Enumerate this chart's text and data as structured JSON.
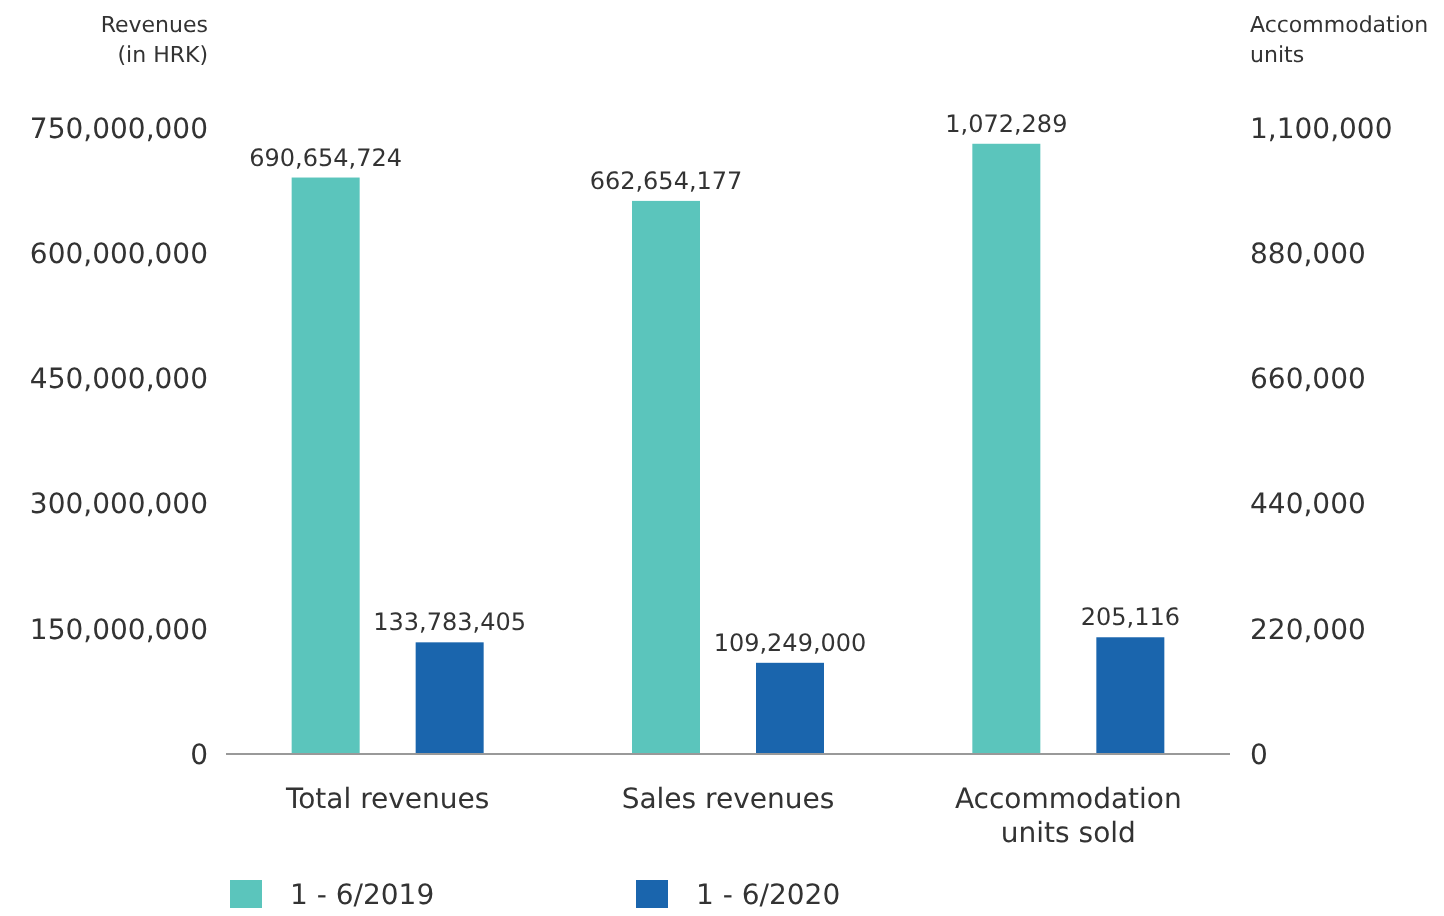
{
  "chart_data": {
    "type": "bar",
    "ylabel": "Revenues\n(in HRK)",
    "y2label": "Accommodation\nunits",
    "categories": [
      "Total revenues",
      "Sales revenues",
      "Accommodation units sold"
    ],
    "series": [
      {
        "name": "1 - 6/2019",
        "color": "#5bc5bc",
        "values": [
          690654724,
          662654177,
          null
        ],
        "value_labels": [
          "690,654,724",
          "662,654,177",
          null
        ]
      },
      {
        "name": "1 - 6/2020",
        "color": "#1a65ad",
        "values": [
          133783405,
          109249000,
          null
        ],
        "value_labels": [
          "133,783,405",
          "109,249,000",
          null
        ]
      },
      {
        "color": "#5bc5bc",
        "axis": "y2",
        "values": [
          null,
          null,
          1072289
        ],
        "value_labels": [
          null,
          null,
          "1,072,289"
        ]
      },
      {
        "color": "#1a65ad",
        "axis": "y2",
        "values": [
          null,
          null,
          205116
        ],
        "value_labels": [
          null,
          null,
          "205,116"
        ]
      }
    ],
    "ylim": [
      0,
      750000000
    ],
    "yticks": [
      0,
      {
        "value": 150000000,
        "label": "150,000,000"
      },
      {
        "value": 300000000,
        "label": "300,000,000"
      },
      {
        "value": 450000000,
        "label": "450,000,000"
      },
      {
        "value": 600000000,
        "label": "600,000,000"
      },
      {
        "value": 750000000,
        "label": "750,000,000"
      }
    ],
    "y2lim": [
      0,
      1100000
    ],
    "y2ticks": [
      0,
      {
        "value": 220000,
        "label": "220,000"
      },
      {
        "value": 440000,
        "label": "440,000"
      },
      {
        "value": 660000,
        "label": "660,000"
      },
      {
        "value": 880000,
        "label": "880,000"
      },
      {
        "value": 1100000,
        "label": "1,100,000"
      }
    ],
    "grid": false,
    "legend": "bottom"
  }
}
